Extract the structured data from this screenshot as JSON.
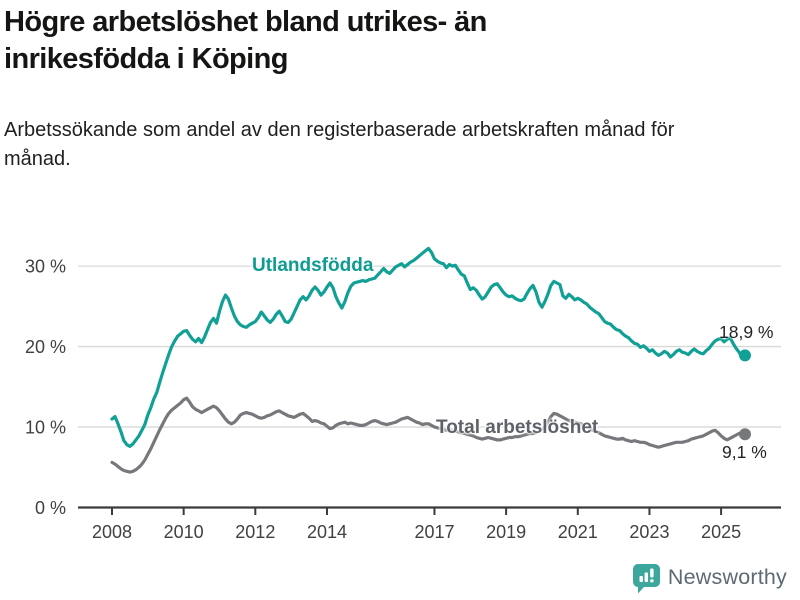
{
  "header": {
    "title": "Högre arbetslöshet bland utrikes- än inrikesfödda i Köping",
    "subtitle": "Arbetssökande som andel av den registerbaserade arbetskraften månad för månad."
  },
  "footer": {
    "brand": "Newsworthy",
    "brand_icon": "newsworthy-speech-bubble-chart-icon",
    "icon_color": "#3ea79d",
    "text_color": "#5c6a73"
  },
  "colors": {
    "utlandsfodda_line": "#10a095",
    "total_line": "#77787c",
    "axis": "#3b3b3b",
    "grid": "#d8d8d8",
    "tick_label": "#414141"
  },
  "chart_data": {
    "type": "line",
    "title": "Högre arbetslöshet bland utrikes- än inrikesfödda i Köping",
    "subtitle": "Arbetssökande som andel av den registerbaserade arbetskraften månad för månad.",
    "frequency": "monthly",
    "x_start": "2008-01",
    "x_end": "2025-09",
    "ylim": [
      0,
      33
    ],
    "grid": true,
    "legend_position": "inline-labels",
    "y_ticks": [
      {
        "value": 0,
        "label": "0 %"
      },
      {
        "value": 10,
        "label": "10 %"
      },
      {
        "value": 20,
        "label": "20 %"
      },
      {
        "value": 30,
        "label": "30 %"
      }
    ],
    "x_tick_years": [
      2008,
      2010,
      2012,
      2014,
      2017,
      2019,
      2021,
      2023,
      2025
    ],
    "series": [
      {
        "name": "Utlandsfödda",
        "color": "#10a095",
        "end_label": "18,9 %",
        "end_value": 18.9,
        "values": [
          11.0,
          11.3,
          10.4,
          9.4,
          8.3,
          7.8,
          7.6,
          7.9,
          8.4,
          8.9,
          9.6,
          10.3,
          11.5,
          12.4,
          13.5,
          14.3,
          15.6,
          16.8,
          17.9,
          19.0,
          20.0,
          20.7,
          21.3,
          21.6,
          21.9,
          22.0,
          21.4,
          20.9,
          20.6,
          21.0,
          20.5,
          21.2,
          22.1,
          23.0,
          23.5,
          22.9,
          24.4,
          25.6,
          26.4,
          25.9,
          24.8,
          23.8,
          23.1,
          22.7,
          22.5,
          22.4,
          22.7,
          22.9,
          23.1,
          23.6,
          24.3,
          23.8,
          23.3,
          23.0,
          23.4,
          24.0,
          24.4,
          23.8,
          23.1,
          23.0,
          23.4,
          24.2,
          25.0,
          25.8,
          26.2,
          25.8,
          26.3,
          27.0,
          27.4,
          27.0,
          26.4,
          26.8,
          27.4,
          27.9,
          27.3,
          26.2,
          25.4,
          24.8,
          25.6,
          26.7,
          27.5,
          27.9,
          28.0,
          28.1,
          28.2,
          28.1,
          28.3,
          28.4,
          28.5,
          28.9,
          29.3,
          29.7,
          29.3,
          29.1,
          29.5,
          29.9,
          30.1,
          30.3,
          29.9,
          30.2,
          30.5,
          30.7,
          31.0,
          31.3,
          31.6,
          31.9,
          32.2,
          31.7,
          30.9,
          30.6,
          30.4,
          30.3,
          29.8,
          30.2,
          30.0,
          30.1,
          29.5,
          29.0,
          28.8,
          27.9,
          27.1,
          27.3,
          27.0,
          26.4,
          25.9,
          26.2,
          26.8,
          27.4,
          27.7,
          27.8,
          27.3,
          26.8,
          26.4,
          26.2,
          26.3,
          26.0,
          25.8,
          25.7,
          25.9,
          26.6,
          27.2,
          27.6,
          26.8,
          25.5,
          24.9,
          25.6,
          26.5,
          27.6,
          28.1,
          27.9,
          27.7,
          26.3,
          26.0,
          26.5,
          26.2,
          25.8,
          26.0,
          25.8,
          25.5,
          25.3,
          24.9,
          24.6,
          24.3,
          24.1,
          23.6,
          23.1,
          22.9,
          22.8,
          22.4,
          22.1,
          22.0,
          21.6,
          21.3,
          21.1,
          20.7,
          20.4,
          20.3,
          19.9,
          20.1,
          19.8,
          19.4,
          19.6,
          19.2,
          18.9,
          19.1,
          19.4,
          19.2,
          18.7,
          19.0,
          19.4,
          19.6,
          19.3,
          19.2,
          19.0,
          19.4,
          19.7,
          19.4,
          19.2,
          19.1,
          19.5,
          19.8,
          20.3,
          20.7,
          20.9,
          21.0,
          20.6,
          20.9,
          21.1,
          20.4,
          19.8,
          19.3,
          18.7,
          18.9
        ]
      },
      {
        "name": "Total arbetslöshet",
        "color": "#77787c",
        "end_label": "9,1 %",
        "end_value": 9.1,
        "values": [
          5.6,
          5.4,
          5.1,
          4.8,
          4.6,
          4.5,
          4.4,
          4.5,
          4.7,
          5.0,
          5.4,
          5.9,
          6.6,
          7.3,
          8.1,
          8.9,
          9.7,
          10.4,
          11.1,
          11.7,
          12.1,
          12.4,
          12.7,
          13.0,
          13.4,
          13.6,
          13.1,
          12.5,
          12.2,
          12.0,
          11.8,
          12.0,
          12.2,
          12.4,
          12.6,
          12.4,
          12.0,
          11.5,
          11.0,
          10.6,
          10.4,
          10.6,
          11.0,
          11.5,
          11.7,
          11.8,
          11.7,
          11.6,
          11.4,
          11.2,
          11.1,
          11.2,
          11.4,
          11.5,
          11.7,
          11.9,
          12.0,
          11.8,
          11.6,
          11.4,
          11.3,
          11.2,
          11.4,
          11.6,
          11.7,
          11.4,
          11.1,
          10.7,
          10.8,
          10.7,
          10.5,
          10.4,
          10.1,
          9.8,
          9.9,
          10.2,
          10.4,
          10.5,
          10.6,
          10.4,
          10.5,
          10.4,
          10.3,
          10.2,
          10.2,
          10.3,
          10.5,
          10.7,
          10.8,
          10.7,
          10.5,
          10.4,
          10.3,
          10.4,
          10.5,
          10.6,
          10.8,
          11.0,
          11.1,
          11.2,
          11.0,
          10.8,
          10.6,
          10.5,
          10.3,
          10.4,
          10.4,
          10.2,
          10.0,
          9.9,
          9.8,
          9.7,
          9.6,
          9.7,
          9.6,
          9.5,
          9.4,
          9.3,
          9.2,
          9.1,
          9.0,
          8.9,
          8.7,
          8.6,
          8.5,
          8.6,
          8.7,
          8.6,
          8.5,
          8.4,
          8.4,
          8.5,
          8.6,
          8.7,
          8.7,
          8.8,
          8.8,
          8.9,
          9.0,
          9.1,
          9.2,
          9.2,
          9.3,
          9.5,
          9.7,
          10.0,
          10.6,
          11.3,
          11.7,
          11.6,
          11.4,
          11.2,
          11.0,
          10.8,
          10.7,
          10.6,
          10.5,
          10.4,
          10.2,
          10.0,
          9.8,
          9.6,
          9.5,
          9.3,
          9.1,
          8.9,
          8.8,
          8.7,
          8.6,
          8.5,
          8.5,
          8.6,
          8.4,
          8.3,
          8.2,
          8.3,
          8.2,
          8.1,
          8.1,
          8.0,
          7.8,
          7.7,
          7.6,
          7.5,
          7.6,
          7.7,
          7.8,
          7.9,
          8.0,
          8.1,
          8.1,
          8.1,
          8.2,
          8.3,
          8.5,
          8.6,
          8.7,
          8.8,
          8.9,
          9.1,
          9.3,
          9.5,
          9.6,
          9.3,
          8.9,
          8.6,
          8.4,
          8.6,
          8.8,
          9.0,
          9.2,
          9.3,
          9.1
        ]
      }
    ]
  }
}
